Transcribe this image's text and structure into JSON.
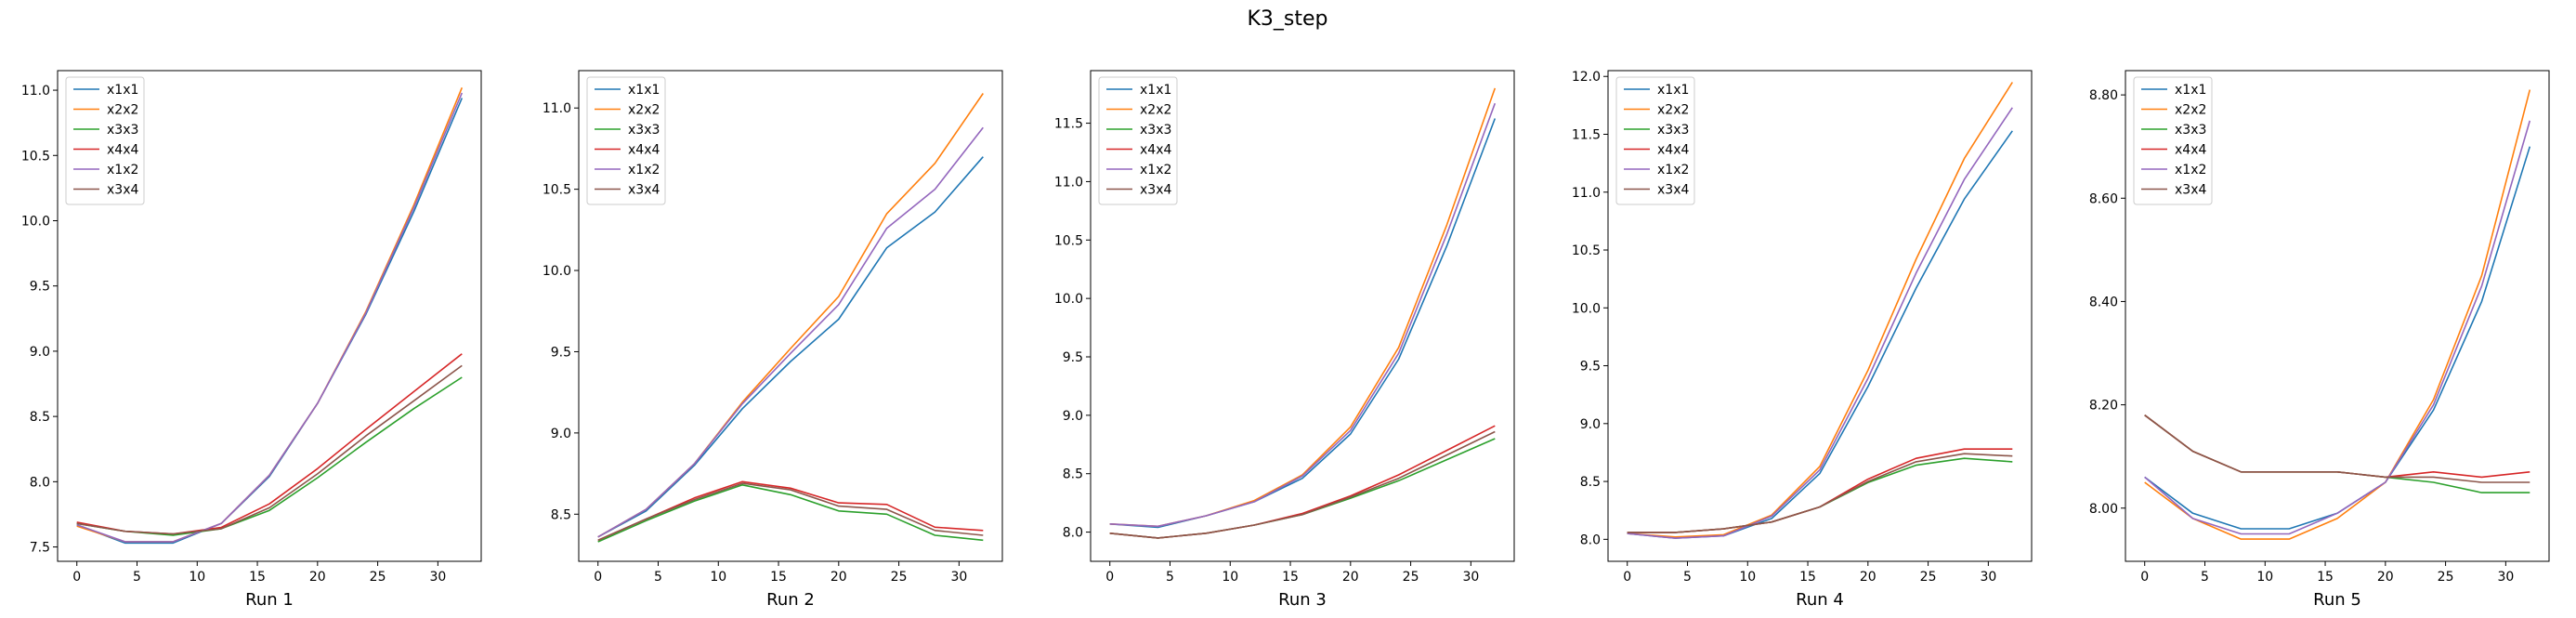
{
  "figure": {
    "title": "K3_step"
  },
  "legend_location": "upper-left",
  "colors": {
    "x1x1": "#1f77b4",
    "x2x2": "#ff7f0e",
    "x3x3": "#2ca02c",
    "x4x4": "#d62728",
    "x1x2": "#9467bd",
    "x3x4": "#8c564b"
  },
  "chart_data": [
    {
      "type": "line",
      "xlabel": "Run 1",
      "xticks": [
        0,
        5,
        10,
        15,
        20,
        25,
        30
      ],
      "yticks": [
        7.5,
        8.0,
        8.5,
        9.0,
        9.5,
        10.0,
        10.5,
        11.0
      ],
      "xlim": [
        -1.6,
        33.6
      ],
      "ylim": [
        7.39,
        11.15
      ],
      "x": [
        0,
        4,
        8,
        12,
        16,
        20,
        24,
        28,
        32
      ],
      "series": [
        {
          "name": "x1x1",
          "values": [
            7.67,
            7.53,
            7.53,
            7.68,
            8.04,
            8.6,
            9.28,
            10.07,
            10.94
          ]
        },
        {
          "name": "x2x2",
          "values": [
            7.66,
            7.54,
            7.54,
            7.68,
            8.05,
            8.6,
            9.3,
            10.12,
            11.02
          ]
        },
        {
          "name": "x3x3",
          "values": [
            7.68,
            7.62,
            7.59,
            7.64,
            7.78,
            8.03,
            8.3,
            8.56,
            8.8
          ]
        },
        {
          "name": "x4x4",
          "values": [
            7.69,
            7.62,
            7.6,
            7.65,
            7.83,
            8.1,
            8.4,
            8.69,
            8.98
          ]
        },
        {
          "name": "x1x2",
          "values": [
            7.67,
            7.54,
            7.54,
            7.68,
            8.05,
            8.6,
            9.29,
            10.1,
            10.98
          ]
        },
        {
          "name": "x3x4",
          "values": [
            7.68,
            7.62,
            7.6,
            7.64,
            7.8,
            8.06,
            8.35,
            8.62,
            8.89
          ]
        }
      ]
    },
    {
      "type": "line",
      "xlabel": "Run 2",
      "xticks": [
        0,
        5,
        10,
        15,
        20,
        25,
        30
      ],
      "yticks": [
        8.5,
        9.0,
        9.5,
        10.0,
        10.5,
        11.0
      ],
      "xlim": [
        -1.6,
        33.6
      ],
      "ylim": [
        8.21,
        11.23
      ],
      "x": [
        0,
        4,
        8,
        12,
        16,
        20,
        24,
        28,
        32
      ],
      "series": [
        {
          "name": "x1x1",
          "values": [
            8.36,
            8.52,
            8.8,
            9.15,
            9.44,
            9.7,
            10.14,
            10.36,
            10.7
          ]
        },
        {
          "name": "x2x2",
          "values": [
            8.36,
            8.53,
            8.81,
            9.19,
            9.52,
            9.84,
            10.35,
            10.66,
            11.09
          ]
        },
        {
          "name": "x3x3",
          "values": [
            8.33,
            8.46,
            8.58,
            8.68,
            8.62,
            8.52,
            8.5,
            8.37,
            8.34
          ]
        },
        {
          "name": "x4x4",
          "values": [
            8.34,
            8.47,
            8.6,
            8.7,
            8.66,
            8.57,
            8.56,
            8.42,
            8.4
          ]
        },
        {
          "name": "x1x2",
          "values": [
            8.36,
            8.53,
            8.81,
            9.18,
            9.49,
            9.79,
            10.26,
            10.5,
            10.88
          ]
        },
        {
          "name": "x3x4",
          "values": [
            8.34,
            8.47,
            8.59,
            8.69,
            8.65,
            8.55,
            8.53,
            8.4,
            8.37
          ]
        }
      ]
    },
    {
      "type": "line",
      "xlabel": "Run 3",
      "xticks": [
        0,
        5,
        10,
        15,
        20,
        25,
        30
      ],
      "yticks": [
        8.0,
        8.5,
        9.0,
        9.5,
        10.0,
        10.5,
        11.0,
        11.5
      ],
      "xlim": [
        -1.6,
        33.6
      ],
      "ylim": [
        7.75,
        11.95
      ],
      "x": [
        0,
        4,
        8,
        12,
        16,
        20,
        24,
        28,
        32
      ],
      "series": [
        {
          "name": "x1x1",
          "values": [
            8.07,
            8.04,
            8.14,
            8.26,
            8.46,
            8.84,
            9.48,
            10.45,
            11.54
          ]
        },
        {
          "name": "x2x2",
          "values": [
            8.07,
            8.05,
            8.14,
            8.27,
            8.49,
            8.9,
            9.58,
            10.63,
            11.8
          ]
        },
        {
          "name": "x3x3",
          "values": [
            7.99,
            7.95,
            7.99,
            8.06,
            8.15,
            8.29,
            8.44,
            8.62,
            8.8
          ]
        },
        {
          "name": "x4x4",
          "values": [
            7.99,
            7.95,
            7.99,
            8.06,
            8.16,
            8.31,
            8.49,
            8.7,
            8.91
          ]
        },
        {
          "name": "x1x2",
          "values": [
            8.07,
            8.05,
            8.14,
            8.26,
            8.48,
            8.87,
            9.53,
            10.55,
            11.67
          ]
        },
        {
          "name": "x3x4",
          "values": [
            7.99,
            7.95,
            7.99,
            8.06,
            8.15,
            8.3,
            8.46,
            8.66,
            8.86
          ]
        }
      ]
    },
    {
      "type": "line",
      "xlabel": "Run 4",
      "xticks": [
        0,
        5,
        10,
        15,
        20,
        25,
        30
      ],
      "yticks": [
        8.0,
        8.5,
        9.0,
        9.5,
        10.0,
        10.5,
        11.0,
        11.5,
        12.0
      ],
      "xlim": [
        -1.6,
        33.6
      ],
      "ylim": [
        7.81,
        12.05
      ],
      "x": [
        0,
        4,
        8,
        12,
        16,
        20,
        24,
        28,
        32
      ],
      "series": [
        {
          "name": "x1x1",
          "values": [
            8.05,
            8.01,
            8.03,
            8.18,
            8.57,
            9.32,
            10.17,
            10.94,
            11.53
          ]
        },
        {
          "name": "x2x2",
          "values": [
            8.05,
            8.02,
            8.04,
            8.21,
            8.63,
            9.46,
            10.42,
            11.29,
            11.95
          ]
        },
        {
          "name": "x3x3",
          "values": [
            8.06,
            8.06,
            8.09,
            8.15,
            8.28,
            8.49,
            8.64,
            8.7,
            8.67
          ]
        },
        {
          "name": "x4x4",
          "values": [
            8.06,
            8.06,
            8.09,
            8.15,
            8.28,
            8.52,
            8.7,
            8.78,
            8.78
          ]
        },
        {
          "name": "x1x2",
          "values": [
            8.05,
            8.01,
            8.03,
            8.2,
            8.6,
            9.39,
            10.3,
            11.11,
            11.73
          ]
        },
        {
          "name": "x3x4",
          "values": [
            8.06,
            8.06,
            8.09,
            8.15,
            8.28,
            8.5,
            8.67,
            8.74,
            8.72
          ]
        }
      ]
    },
    {
      "type": "line",
      "xlabel": "Run 5",
      "xticks": [
        0,
        5,
        10,
        15,
        20,
        25,
        30
      ],
      "yticks": [
        8.0,
        8.2,
        8.4,
        8.6,
        8.8
      ],
      "xlim": [
        -1.6,
        33.6
      ],
      "ylim": [
        7.897,
        8.847
      ],
      "x": [
        0,
        4,
        8,
        12,
        16,
        20,
        24,
        28,
        32
      ],
      "series": [
        {
          "name": "x1x1",
          "values": [
            8.06,
            7.99,
            7.96,
            7.96,
            7.99,
            8.05,
            8.19,
            8.4,
            8.7
          ]
        },
        {
          "name": "x2x2",
          "values": [
            8.05,
            7.98,
            7.94,
            7.94,
            7.98,
            8.05,
            8.21,
            8.45,
            8.81
          ]
        },
        {
          "name": "x3x3",
          "values": [
            8.18,
            8.11,
            8.07,
            8.07,
            8.07,
            8.06,
            8.05,
            8.03,
            8.03
          ]
        },
        {
          "name": "x4x4",
          "values": [
            8.18,
            8.11,
            8.07,
            8.07,
            8.07,
            8.06,
            8.07,
            8.06,
            8.07
          ]
        },
        {
          "name": "x1x2",
          "values": [
            8.06,
            7.98,
            7.95,
            7.95,
            7.99,
            8.05,
            8.2,
            8.43,
            8.75
          ]
        },
        {
          "name": "x3x4",
          "values": [
            8.18,
            8.11,
            8.07,
            8.07,
            8.07,
            8.06,
            8.06,
            8.05,
            8.05
          ]
        }
      ]
    }
  ]
}
